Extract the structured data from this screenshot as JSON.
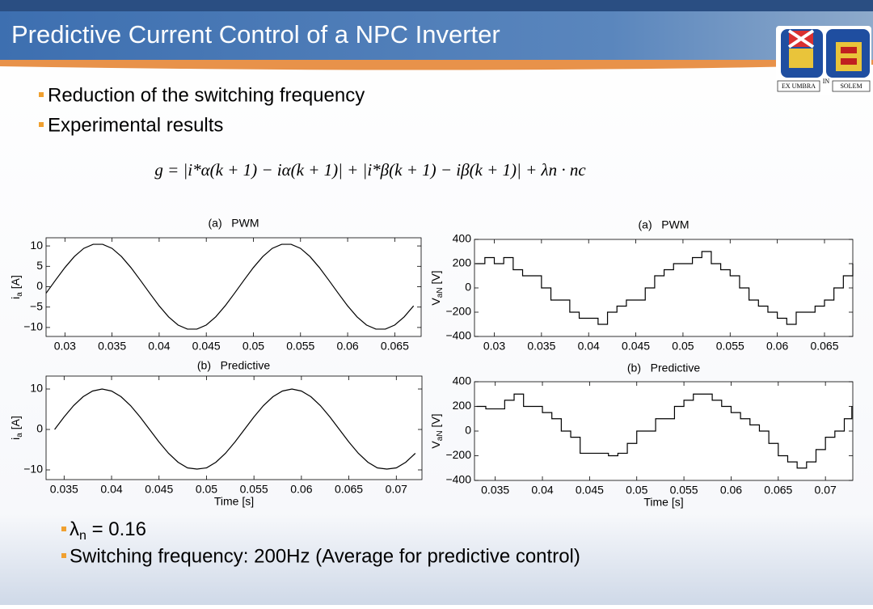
{
  "header": {
    "title": "Predictive Current Control of a NPC Inverter"
  },
  "logo": {
    "left": "EX UMBRA",
    "middle": "IN",
    "right": "SOLEM"
  },
  "bullets_top": [
    "Reduction of the switching frequency",
    "Experimental results"
  ],
  "formula": "g = |i*α(k + 1) − iα(k + 1)| + |i*β(k + 1) − iβ(k + 1)| + λn · nc",
  "bullets_bottom": [
    {
      "symbol": "λ",
      "sub": "n",
      "rest": " = 0.16"
    },
    {
      "text": "Switching frequency: 200Hz (Average for predictive control)"
    }
  ],
  "chart_data": [
    {
      "type": "line",
      "title": "(a)   PWM",
      "ylabel": {
        "symbol": "i",
        "sub": "a",
        "unit": " [A]"
      },
      "xlim": [
        0.028,
        0.0678
      ],
      "ylim": [
        -12.2,
        12
      ],
      "xticks": [
        0.03,
        0.035,
        0.04,
        0.045,
        0.05,
        0.055,
        0.06,
        0.065
      ],
      "yticks": [
        {
          "value": -10,
          "label": "−10"
        },
        {
          "value": -5,
          "label": "−5"
        },
        0,
        5,
        10
      ],
      "drawstyle": "line",
      "color": "#000000",
      "x": [
        0.028,
        0.029,
        0.03,
        0.031,
        0.032,
        0.033,
        0.034,
        0.035,
        0.036,
        0.037,
        0.038,
        0.039,
        0.04,
        0.041,
        0.042,
        0.043,
        0.044,
        0.045,
        0.046,
        0.047,
        0.048,
        0.049,
        0.05,
        0.051,
        0.052,
        0.053,
        0.054,
        0.055,
        0.056,
        0.057,
        0.058,
        0.059,
        0.06,
        0.061,
        0.062,
        0.063,
        0.064,
        0.065,
        0.066,
        0.067
      ],
      "values": [
        -1.6,
        1.6,
        4.7,
        7.4,
        9.4,
        10.4,
        10.4,
        9.4,
        7.4,
        4.7,
        1.6,
        -1.6,
        -4.7,
        -7.4,
        -9.4,
        -10.4,
        -10.4,
        -9.4,
        -7.4,
        -4.7,
        -1.6,
        1.6,
        4.7,
        7.4,
        9.4,
        10.4,
        10.4,
        9.4,
        7.4,
        4.7,
        1.6,
        -1.6,
        -4.7,
        -7.4,
        -9.4,
        -10.4,
        -10.4,
        -9.4,
        -7.4,
        -4.7
      ]
    },
    {
      "type": "line",
      "title": "(a)   PWM",
      "ylabel": {
        "symbol": "V",
        "sub": "aN",
        "unit": " [V]"
      },
      "xlim": [
        0.0279,
        0.068
      ],
      "ylim": [
        -400,
        400
      ],
      "xticks": [
        0.03,
        0.035,
        0.04,
        0.045,
        0.05,
        0.055,
        0.06,
        0.065
      ],
      "yticks": [
        {
          "value": -400,
          "label": "−400"
        },
        {
          "value": -200,
          "label": "−200"
        },
        0,
        200,
        400
      ],
      "drawstyle": "steps",
      "color": "#000000",
      "x": [
        0.028,
        0.029,
        0.03,
        0.031,
        0.032,
        0.033,
        0.034,
        0.035,
        0.036,
        0.037,
        0.038,
        0.039,
        0.04,
        0.041,
        0.042,
        0.043,
        0.044,
        0.045,
        0.046,
        0.047,
        0.048,
        0.049,
        0.05,
        0.051,
        0.052,
        0.053,
        0.054,
        0.055,
        0.056,
        0.057,
        0.058,
        0.059,
        0.06,
        0.061,
        0.062,
        0.063,
        0.064,
        0.065,
        0.066,
        0.067,
        0.068
      ],
      "values": [
        200,
        250,
        200,
        250,
        150,
        100,
        100,
        0,
        -100,
        -100,
        -200,
        -250,
        -250,
        -300,
        -200,
        -150,
        -100,
        -100,
        0,
        100,
        150,
        200,
        200,
        250,
        300,
        200,
        150,
        100,
        0,
        -100,
        -150,
        -200,
        -250,
        -300,
        -200,
        -200,
        -150,
        -100,
        0,
        100,
        200
      ]
    },
    {
      "type": "line",
      "title": "(b)   Predictive",
      "ylabel": {
        "symbol": "i",
        "sub": "a",
        "unit": " [A]"
      },
      "xlabel": "Time [s]",
      "xlim": [
        0.0331,
        0.0727
      ],
      "ylim": [
        -12.4,
        13.2
      ],
      "xticks": [
        0.035,
        0.04,
        0.045,
        0.05,
        0.055,
        0.06,
        0.065,
        0.07
      ],
      "yticks": [
        {
          "value": -10,
          "label": "−10"
        },
        0,
        10
      ],
      "drawstyle": "line",
      "color": "#000000",
      "x": [
        0.034,
        0.035,
        0.036,
        0.037,
        0.038,
        0.039,
        0.04,
        0.041,
        0.042,
        0.043,
        0.044,
        0.045,
        0.046,
        0.047,
        0.048,
        0.049,
        0.05,
        0.051,
        0.052,
        0.053,
        0.054,
        0.055,
        0.056,
        0.057,
        0.058,
        0.059,
        0.06,
        0.061,
        0.062,
        0.063,
        0.064,
        0.065,
        0.066,
        0.067,
        0.068,
        0.069,
        0.07,
        0.071,
        0.072
      ],
      "values": [
        0,
        3.1,
        5.9,
        8.1,
        9.5,
        10,
        9.5,
        8.1,
        5.9,
        3.1,
        0,
        -3.1,
        -5.9,
        -8.1,
        -9.5,
        -9.8,
        -9.5,
        -8.1,
        -5.9,
        -3.1,
        0,
        3.1,
        5.9,
        8.1,
        9.5,
        10,
        9.5,
        8.1,
        5.9,
        3.1,
        0,
        -3.1,
        -5.9,
        -8.1,
        -9.5,
        -9.8,
        -9.5,
        -8.1,
        -5.9
      ]
    },
    {
      "type": "line",
      "title": "(b)   Predictive",
      "ylabel": {
        "symbol": "V",
        "sub": "aN",
        "unit": " [V]"
      },
      "xlabel": "Time [s]",
      "xlim": [
        0.0328,
        0.0729
      ],
      "ylim": [
        -400,
        400
      ],
      "xticks": [
        0.035,
        0.04,
        0.045,
        0.05,
        0.055,
        0.06,
        0.065,
        0.07
      ],
      "yticks": [
        {
          "value": -400,
          "label": "−400"
        },
        {
          "value": -200,
          "label": "−200"
        },
        0,
        200,
        400
      ],
      "drawstyle": "steps",
      "color": "#000000",
      "x": [
        0.033,
        0.034,
        0.035,
        0.036,
        0.037,
        0.038,
        0.039,
        0.04,
        0.041,
        0.042,
        0.043,
        0.044,
        0.045,
        0.046,
        0.047,
        0.048,
        0.049,
        0.05,
        0.051,
        0.052,
        0.053,
        0.054,
        0.055,
        0.056,
        0.057,
        0.058,
        0.059,
        0.06,
        0.061,
        0.062,
        0.063,
        0.064,
        0.065,
        0.066,
        0.067,
        0.068,
        0.069,
        0.07,
        0.071,
        0.072,
        0.0728
      ],
      "values": [
        200,
        180,
        180,
        250,
        300,
        200,
        200,
        150,
        100,
        0,
        -50,
        -180,
        -180,
        -180,
        -200,
        -180,
        -100,
        0,
        0,
        100,
        100,
        200,
        250,
        300,
        300,
        250,
        200,
        150,
        100,
        50,
        0,
        -100,
        -200,
        -250,
        -300,
        -250,
        -150,
        -50,
        0,
        100,
        200
      ]
    }
  ]
}
